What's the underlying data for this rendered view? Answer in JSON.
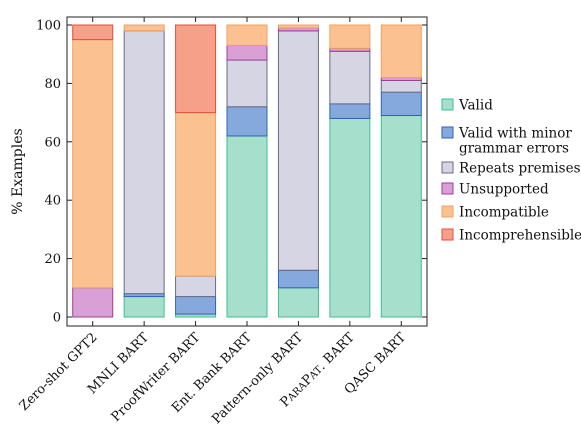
{
  "chart_data": {
    "type": "bar",
    "stacked": true,
    "categories": [
      "Zero-shot GPT2",
      "MNLI BART",
      "ProofWriter BART",
      "Ent. Bank BART",
      "Pattern-only BART",
      "PARAPAT. BART",
      "QASC BART"
    ],
    "category_display": [
      {
        "parts": [
          {
            "text": "Zero-shot GPT2",
            "small": false
          }
        ]
      },
      {
        "parts": [
          {
            "text": "MNLI BART",
            "small": false
          }
        ]
      },
      {
        "parts": [
          {
            "text": "ProofWriter BART",
            "small": false
          }
        ]
      },
      {
        "parts": [
          {
            "text": "Ent. Bank BART",
            "small": false
          }
        ]
      },
      {
        "parts": [
          {
            "text": "Pattern-only BART",
            "small": false
          }
        ]
      },
      {
        "parts": [
          {
            "text": "P",
            "small": false
          },
          {
            "text": "ARA",
            "small": true
          },
          {
            "text": "P",
            "small": false
          },
          {
            "text": "AT",
            "small": true
          },
          {
            "text": ". BART",
            "small": false
          }
        ]
      },
      {
        "parts": [
          {
            "text": "QASC BART",
            "small": false
          }
        ]
      }
    ],
    "series": [
      {
        "name": "Valid",
        "fill": "#a6dfcb",
        "stroke": "#3fbf8f",
        "values": [
          0,
          7,
          1,
          62,
          10,
          68,
          69
        ]
      },
      {
        "name": "Valid with minor grammar errors",
        "name_lines": [
          "Valid with minor",
          "grammar errors"
        ],
        "fill": "#86a9dd",
        "stroke": "#2f63b8",
        "values": [
          0,
          1,
          6,
          10,
          6,
          5,
          8
        ]
      },
      {
        "name": "Repeats premises",
        "fill": "#d6d5e4",
        "stroke": "#6b6a85",
        "values": [
          0,
          90,
          7,
          16,
          82,
          18,
          4
        ]
      },
      {
        "name": "Unsupported",
        "fill": "#d9a0d6",
        "stroke": "#9b3f97",
        "values": [
          10,
          0,
          0,
          5,
          1,
          1,
          1
        ]
      },
      {
        "name": "Incompatible",
        "fill": "#fbc191",
        "stroke": "#f0a060",
        "values": [
          85,
          2,
          56,
          7,
          1,
          8,
          18
        ]
      },
      {
        "name": "Incomprehensible",
        "fill": "#f6a08a",
        "stroke": "#e0503a",
        "values": [
          5,
          0,
          30,
          0,
          0,
          0,
          0
        ]
      }
    ],
    "ylabel": "% Examples",
    "ylim": [
      0,
      100
    ],
    "yticks": [
      "0",
      "20",
      "40",
      "60",
      "80",
      "100"
    ],
    "grid": false,
    "legend_position": "right"
  }
}
